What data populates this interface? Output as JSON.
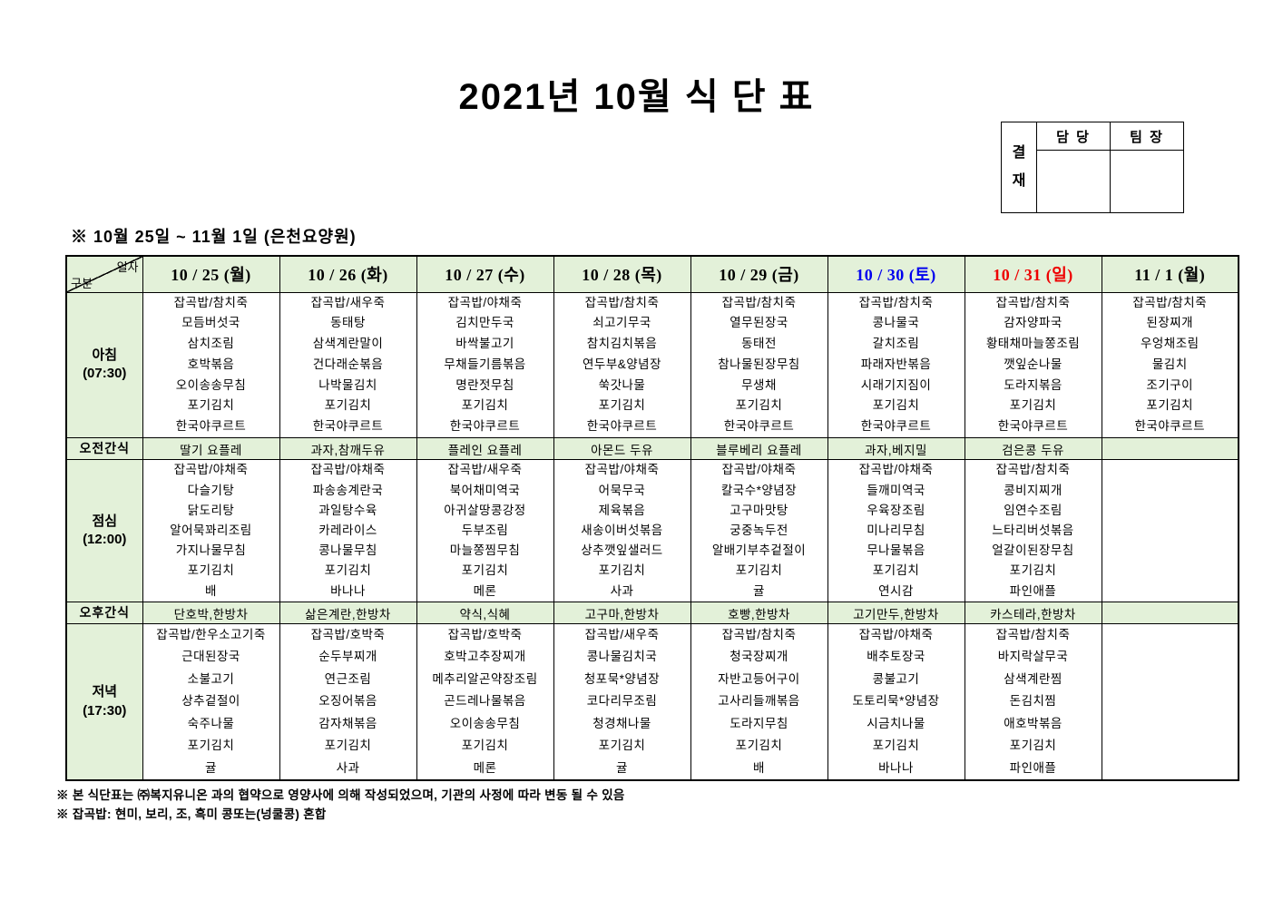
{
  "title": "2021년 10월 식 단 표",
  "approval": {
    "stamp": "결\n재",
    "manager": "담 당",
    "team_lead": "팀 장"
  },
  "subtitle": "※ 10월 25일 ~ 11월 1일 (은천요양원)",
  "table": {
    "corner": {
      "top_right": "일자",
      "bottom_left": "구분"
    },
    "rows": {
      "breakfast_label": "아침\n(07:30)",
      "morning_snack_label": "오전간식",
      "lunch_label": "점심\n(12:00)",
      "afternoon_snack_label": "오후간식",
      "dinner_label": "저녁\n(17:30)"
    },
    "days": [
      {
        "date": "10 / 25 (월)",
        "color": "#000000",
        "breakfast": [
          "잡곡밥/참치죽",
          "모듬버섯국",
          "삼치조림",
          "호박볶음",
          "오이송송무침",
          "포기김치",
          "한국야쿠르트"
        ],
        "morning_snack": "딸기 요플레",
        "lunch": [
          "잡곡밥/야채죽",
          "다슬기탕",
          "닭도리탕",
          "알어묵꽈리조림",
          "가지나물무침",
          "포기김치",
          "배"
        ],
        "afternoon_snack": "단호박,한방차",
        "dinner": [
          "잡곡밥/한우소고기죽",
          "근대된장국",
          "소불고기",
          "상추겉절이",
          "숙주나물",
          "포기김치",
          "귤"
        ]
      },
      {
        "date": "10 / 26 (화)",
        "color": "#000000",
        "breakfast": [
          "잡곡밥/새우죽",
          "동태탕",
          "삼색계란말이",
          "건다래순볶음",
          "나박물김치",
          "포기김치",
          "한국야쿠르트"
        ],
        "morning_snack": "과자,참깨두유",
        "lunch": [
          "잡곡밥/야채죽",
          "파송송계란국",
          "과일탕수육",
          "카레라이스",
          "콩나물무침",
          "포기김치",
          "바나나"
        ],
        "afternoon_snack": "삶은계란,한방차",
        "dinner": [
          "잡곡밥/호박죽",
          "순두부찌개",
          "연근조림",
          "오징어볶음",
          "감자채볶음",
          "포기김치",
          "사과"
        ]
      },
      {
        "date": "10 / 27 (수)",
        "color": "#000000",
        "breakfast": [
          "잡곡밥/야채죽",
          "김치만두국",
          "바싹불고기",
          "무채들기름볶음",
          "명란젓무침",
          "포기김치",
          "한국야쿠르트"
        ],
        "morning_snack": "플레인 요플레",
        "lunch": [
          "잡곡밥/새우죽",
          "북어채미역국",
          "아귀살땅콩강정",
          "두부조림",
          "마늘쫑찜무침",
          "포기김치",
          "메론"
        ],
        "afternoon_snack": "약식,식혜",
        "dinner": [
          "잡곡밥/호박죽",
          "호박고추장찌개",
          "메추리알곤약장조림",
          "곤드레나물볶음",
          "오이송송무침",
          "포기김치",
          "메론"
        ]
      },
      {
        "date": "10 / 28 (목)",
        "color": "#000000",
        "breakfast": [
          "잡곡밥/참치죽",
          "쇠고기무국",
          "참치김치볶음",
          "연두부&양념장",
          "쑥갓나물",
          "포기김치",
          "한국야쿠르트"
        ],
        "morning_snack": "아몬드 두유",
        "lunch": [
          "잡곡밥/야채죽",
          "어묵무국",
          "제육볶음",
          "새송이버섯볶음",
          "상추깻잎샐러드",
          "포기김치",
          "사과"
        ],
        "afternoon_snack": "고구마,한방차",
        "dinner": [
          "잡곡밥/새우죽",
          "콩나물김치국",
          "청포묵*양념장",
          "코다리무조림",
          "청경채나물",
          "포기김치",
          "귤"
        ]
      },
      {
        "date": "10 / 29 (금)",
        "color": "#000000",
        "breakfast": [
          "잡곡밥/참치죽",
          "열무된장국",
          "동태전",
          "참나물된장무침",
          "무생채",
          "포기김치",
          "한국야쿠르트"
        ],
        "morning_snack": "블루베리 요플레",
        "lunch": [
          "잡곡밥/야채죽",
          "칼국수*양념장",
          "고구마맛탕",
          "궁중녹두전",
          "알배기부추겉절이",
          "포기김치",
          "귤"
        ],
        "afternoon_snack": "호빵,한방차",
        "dinner": [
          "잡곡밥/참치죽",
          "청국장찌개",
          "자반고등어구이",
          "고사리들깨볶음",
          "도라지무침",
          "포기김치",
          "배"
        ]
      },
      {
        "date": "10 / 30 (토)",
        "color": "#0000ee",
        "breakfast": [
          "잡곡밥/참치죽",
          "콩나물국",
          "갈치조림",
          "파래자반볶음",
          "시래기지짐이",
          "포기김치",
          "한국야쿠르트"
        ],
        "morning_snack": "과자,베지밀",
        "lunch": [
          "잡곡밥/야채죽",
          "들깨미역국",
          "우육장조림",
          "미나리무침",
          "무나물볶음",
          "포기김치",
          "연시감"
        ],
        "afternoon_snack": "고기만두,한방차",
        "dinner": [
          "잡곡밥/야채죽",
          "배추토장국",
          "콩불고기",
          "도토리묵*양념장",
          "시금치나물",
          "포기김치",
          "바나나"
        ]
      },
      {
        "date": "10 / 31 (일)",
        "color": "#ee0000",
        "breakfast": [
          "잡곡밥/참치죽",
          "감자양파국",
          "황태채마늘쫑조림",
          "깻잎순나물",
          "도라지볶음",
          "포기김치",
          "한국야쿠르트"
        ],
        "morning_snack": "검은콩 두유",
        "lunch": [
          "잡곡밥/참치죽",
          "콩비지찌개",
          "임연수조림",
          "느타리버섯볶음",
          "얼갈이된장무침",
          "포기김치",
          "파인애플"
        ],
        "afternoon_snack": "카스테라,한방차",
        "dinner": [
          "잡곡밥/참치죽",
          "바지락살무국",
          "삼색계란찜",
          "돈김치찜",
          "애호박볶음",
          "포기김치",
          "파인애플"
        ]
      },
      {
        "date": "11 / 1 (월)",
        "color": "#000000",
        "breakfast": [
          "잡곡밥/참치죽",
          "된장찌개",
          "우엉채조림",
          "물김치",
          "조기구이",
          "포기김치",
          "한국야쿠르트"
        ],
        "morning_snack": "",
        "lunch": [],
        "afternoon_snack": "",
        "dinner": []
      }
    ]
  },
  "notes": [
    "※ 본 식단표는 ㈜복지유니온 과의 협약으로 영양사에 의해 작성되었으며, 기관의 사정에 따라 변동 될 수 있음",
    "※ 잡곡밥: 현미, 보리, 조, 흑미 콩또는(넝쿨콩) 혼합"
  ],
  "colors": {
    "cell_green": "#e3f1d9",
    "saturday_blue": "#0000ee",
    "sunday_red": "#ee0000"
  }
}
